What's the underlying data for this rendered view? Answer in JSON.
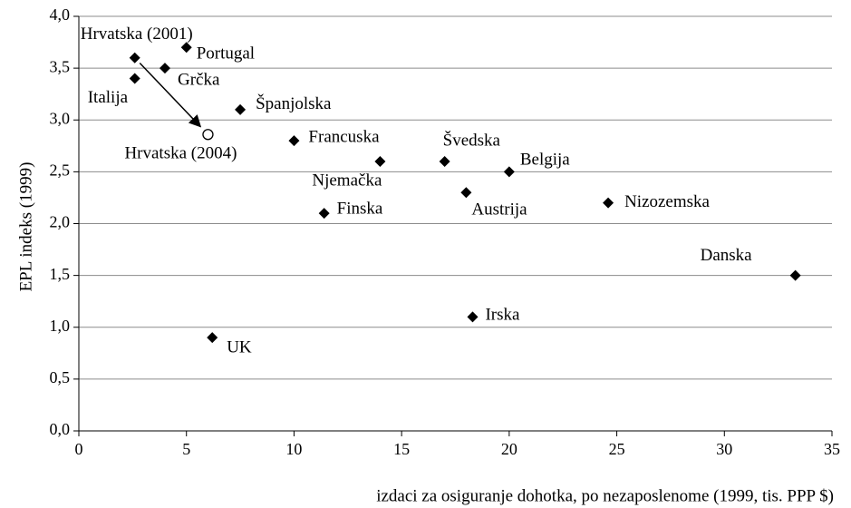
{
  "chart_data": {
    "type": "scatter",
    "x_label": "izdaci za osiguranje dohotka, po nezaposlenome (1999, tis. PPP $)",
    "y_label": "EPL indeks (1999)",
    "point_labels": [
      "Hrvatska (2001)",
      "Italija",
      "Grčka",
      "Portugal",
      "Španjolska",
      "Hrvatska (2004)",
      "Francuska",
      "Njemačka",
      "Finska",
      "Švedska",
      "Austrija",
      "Belgija",
      "Nizozemska",
      "Danska",
      "Irska",
      "UK"
    ],
    "x": [
      2.6,
      2.6,
      4,
      5,
      7.5,
      6,
      10,
      14,
      11.4,
      17,
      18,
      20,
      24.6,
      33.3,
      18.3,
      6.2
    ],
    "values": [
      3.6,
      3.4,
      3.5,
      3.7,
      3.1,
      2.86,
      2.8,
      2.6,
      2.1,
      2.6,
      2.3,
      2.5,
      2.2,
      1.5,
      1.1,
      0.9
    ],
    "markers": [
      "diamond",
      "diamond",
      "diamond",
      "diamond",
      "diamond",
      "circle",
      "diamond",
      "diamond",
      "diamond",
      "diamond",
      "diamond",
      "diamond",
      "diamond",
      "diamond",
      "diamond",
      "diamond"
    ],
    "color": "#000000",
    "xlim": [
      0,
      35
    ],
    "xticks": [
      0,
      5,
      10,
      15,
      20,
      25,
      30,
      35
    ],
    "ylim": [
      0,
      4
    ],
    "yticks": [
      {
        "value": 0,
        "label": "0,0"
      },
      {
        "value": 0.5,
        "label": "0,5"
      },
      {
        "value": 1,
        "label": "1,0"
      },
      {
        "value": 1.5,
        "label": "1,5"
      },
      {
        "value": 2,
        "label": "2,0"
      },
      {
        "value": 2.5,
        "label": "2,5"
      },
      {
        "value": 3,
        "label": "3,0"
      },
      {
        "value": 3.5,
        "label": "3,5"
      },
      {
        "value": 4,
        "label": "4,0"
      }
    ],
    "grid": true
  }
}
